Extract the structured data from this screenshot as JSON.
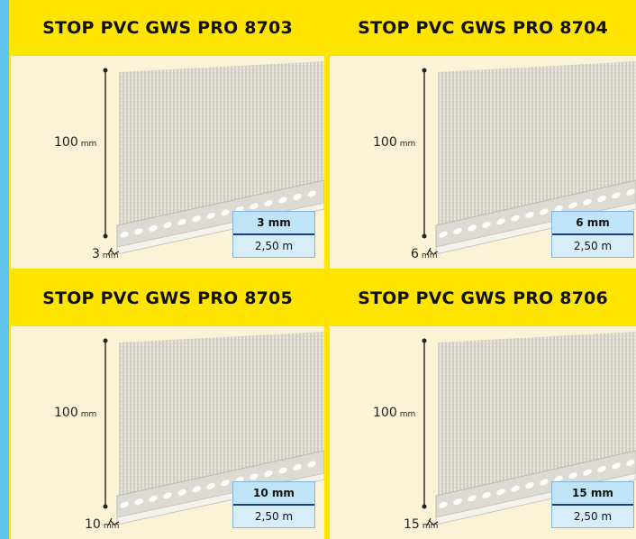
{
  "panels": [
    {
      "title": "STOP PVC GWS PRO 8703",
      "height_value": "100",
      "height_unit": "mm",
      "base_value": "3",
      "base_unit": "mm",
      "thickness": "3 mm",
      "length": "2,50 m"
    },
    {
      "title": "STOP PVC GWS PRO 8704",
      "height_value": "100",
      "height_unit": "mm",
      "base_value": "6",
      "base_unit": "mm",
      "thickness": "6 mm",
      "length": "2,50 m"
    },
    {
      "title": "STOP PVC GWS PRO 8705",
      "height_value": "100",
      "height_unit": "mm",
      "base_value": "10",
      "base_unit": "mm",
      "thickness": "10 mm",
      "length": "2,50 m"
    },
    {
      "title": "STOP PVC GWS PRO 8706",
      "height_value": "100",
      "height_unit": "mm",
      "base_value": "15",
      "base_unit": "mm",
      "thickness": "15 mm",
      "length": "2,50 m"
    }
  ]
}
